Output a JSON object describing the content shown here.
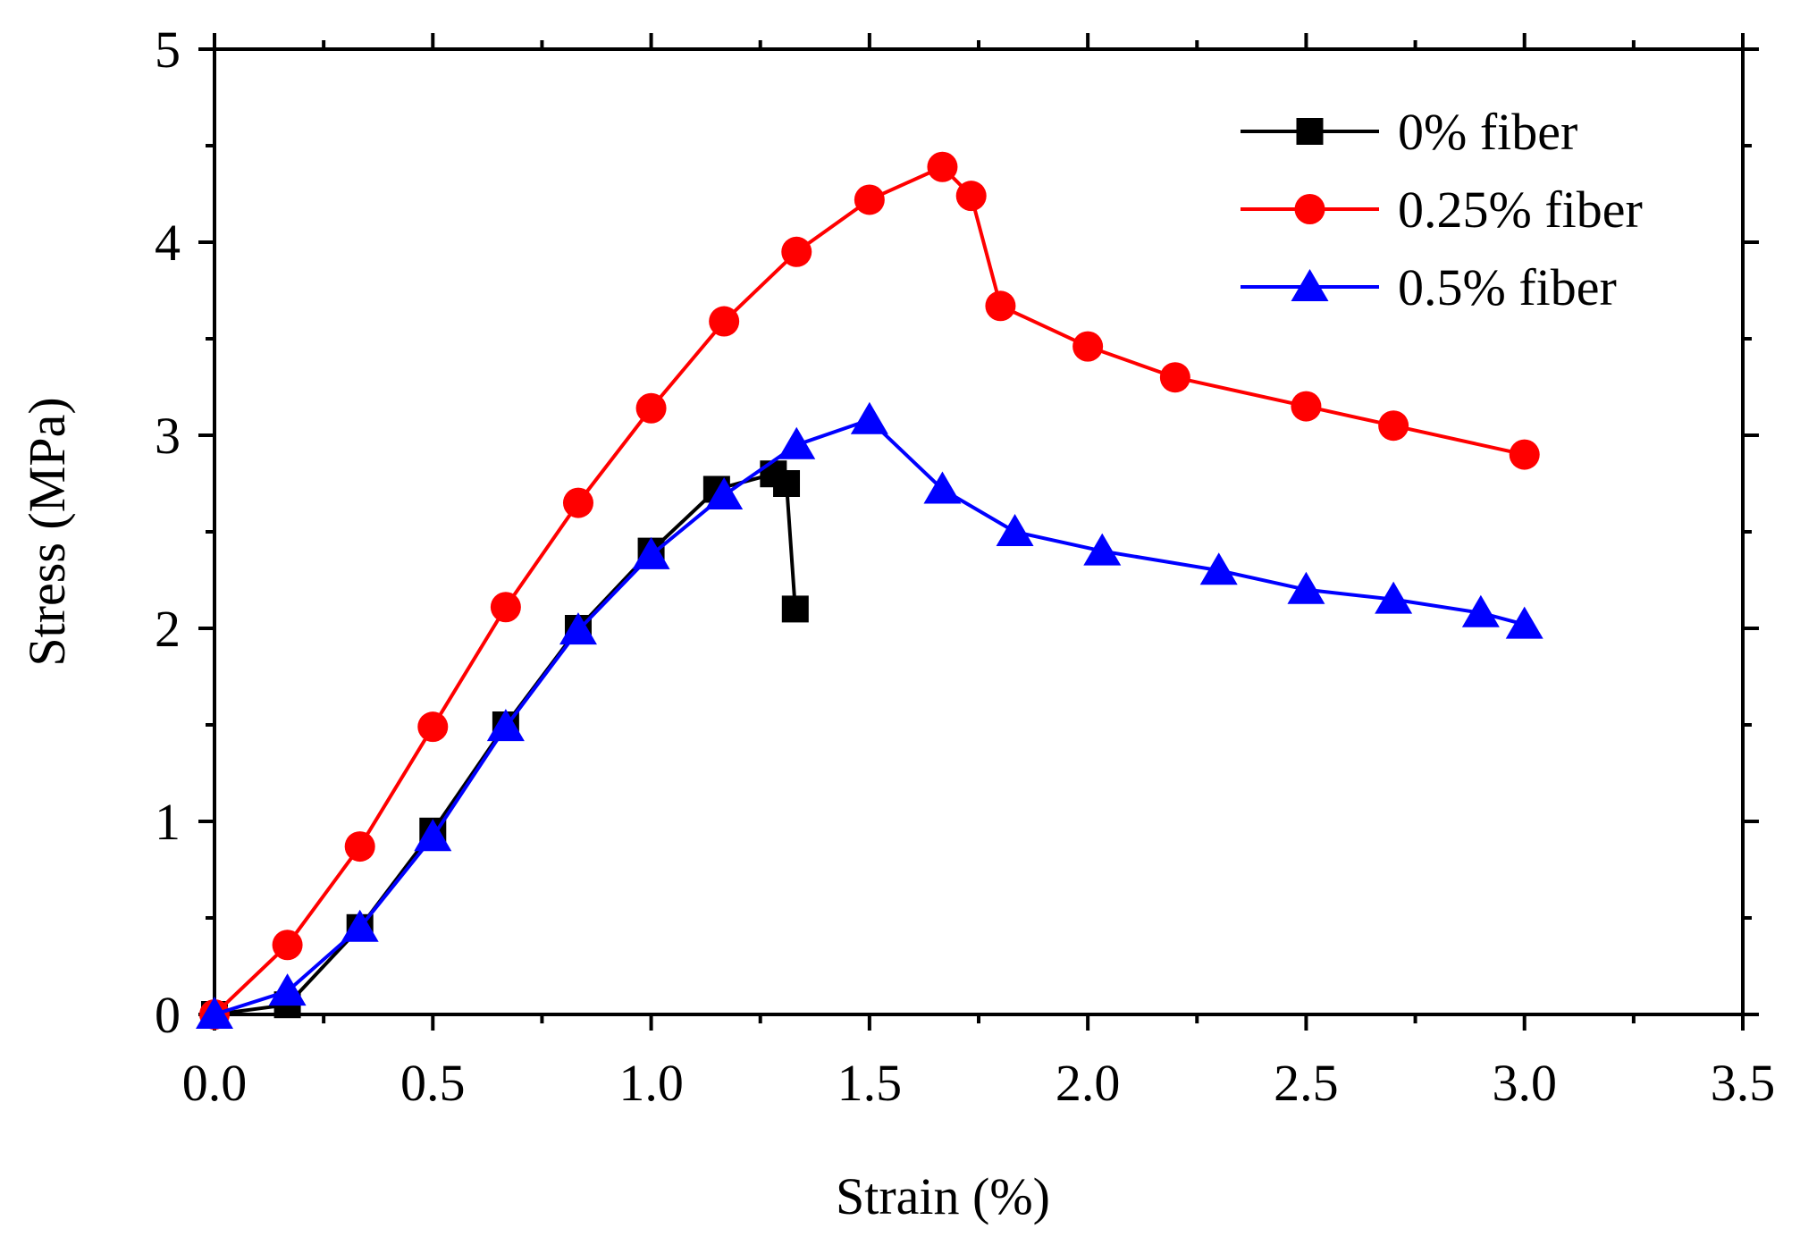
{
  "chart_data": {
    "type": "line",
    "xlabel": "Strain (%)",
    "ylabel": "Stress (MPa)",
    "xlim": [
      0,
      3.5
    ],
    "ylim": [
      0,
      5
    ],
    "xticks": [
      "0.0",
      "0.5",
      "1.0",
      "1.5",
      "2.0",
      "2.5",
      "3.0",
      "3.5"
    ],
    "yticks": [
      "0",
      "1",
      "2",
      "3",
      "4",
      "5"
    ],
    "legend_position": "top-right",
    "series": [
      {
        "name": "0% fiber",
        "color": "#000000",
        "marker": "square",
        "x": [
          0.0,
          0.167,
          0.333,
          0.5,
          0.667,
          0.833,
          1.0,
          1.15,
          1.28,
          1.31,
          1.33
        ],
        "y": [
          0.0,
          0.05,
          0.45,
          0.95,
          1.5,
          2.0,
          2.4,
          2.72,
          2.8,
          2.75,
          2.1
        ]
      },
      {
        "name": "0.25% fiber",
        "color": "#ff0000",
        "marker": "circle",
        "x": [
          0.0,
          0.167,
          0.333,
          0.5,
          0.667,
          0.833,
          1.0,
          1.167,
          1.333,
          1.5,
          1.667,
          1.733,
          1.8,
          2.0,
          2.2,
          2.5,
          2.7,
          3.0
        ],
        "y": [
          0.0,
          0.36,
          0.87,
          1.49,
          2.11,
          2.65,
          3.14,
          3.59,
          3.95,
          4.22,
          4.39,
          4.24,
          3.67,
          3.46,
          3.3,
          3.15,
          3.05,
          2.9
        ]
      },
      {
        "name": "0.5% fiber",
        "color": "#0000ff",
        "marker": "triangle",
        "x": [
          0.0,
          0.167,
          0.333,
          0.5,
          0.667,
          0.833,
          1.0,
          1.167,
          1.333,
          1.5,
          1.667,
          1.833,
          2.033,
          2.3,
          2.5,
          2.7,
          2.9,
          3.0
        ],
        "y": [
          0.0,
          0.12,
          0.45,
          0.92,
          1.49,
          1.99,
          2.38,
          2.69,
          2.95,
          3.08,
          2.72,
          2.5,
          2.4,
          2.3,
          2.2,
          2.15,
          2.08,
          2.02
        ]
      }
    ]
  }
}
